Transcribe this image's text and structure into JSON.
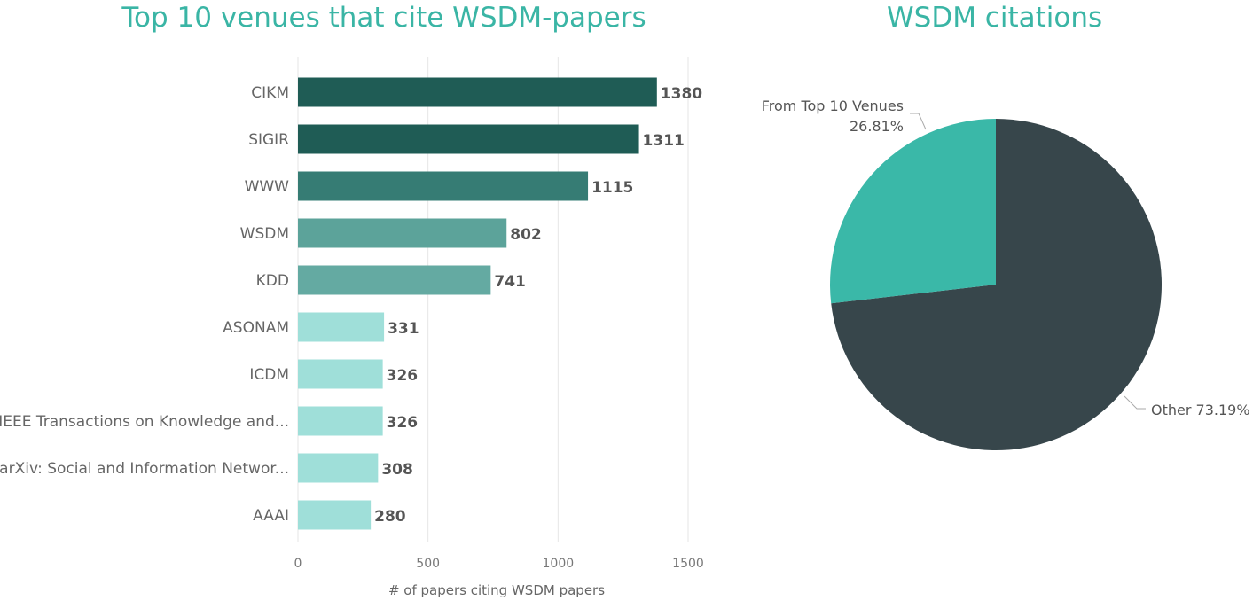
{
  "chart_data": [
    {
      "type": "bar",
      "orientation": "horizontal",
      "title": "Top 10 venues that cite WSDM-papers",
      "categories": [
        "CIKM",
        "SIGIR",
        "WWW",
        "WSDM",
        "KDD",
        "ASONAM",
        "ICDM",
        "IEEE Transactions on Knowledge and...",
        "arXiv: Social and Information Networ...",
        "AAAI"
      ],
      "values": [
        1380,
        1311,
        1115,
        802,
        741,
        331,
        326,
        326,
        308,
        280
      ],
      "colors": [
        "#1f5c55",
        "#1f5c55",
        "#367c74",
        "#5ca39a",
        "#64aaa2",
        "#9fdfd9",
        "#9fdfd9",
        "#9fdfd9",
        "#9fdfd9",
        "#9fdfd9"
      ],
      "xlabel": "# of papers citing WSDM papers",
      "ylabel": "",
      "xlim": [
        0,
        1500
      ],
      "xticks": [
        0,
        500,
        1000,
        1500
      ],
      "grid": "vertical"
    },
    {
      "type": "pie",
      "title": "WSDM citations",
      "slices": [
        {
          "label": "From Top 10 Venues",
          "value": 26.81,
          "value_label": "26.81%",
          "color": "#3ab8a8"
        },
        {
          "label": "Other",
          "value": 73.19,
          "value_label": "73.19%",
          "color": "#37464b"
        }
      ]
    }
  ]
}
